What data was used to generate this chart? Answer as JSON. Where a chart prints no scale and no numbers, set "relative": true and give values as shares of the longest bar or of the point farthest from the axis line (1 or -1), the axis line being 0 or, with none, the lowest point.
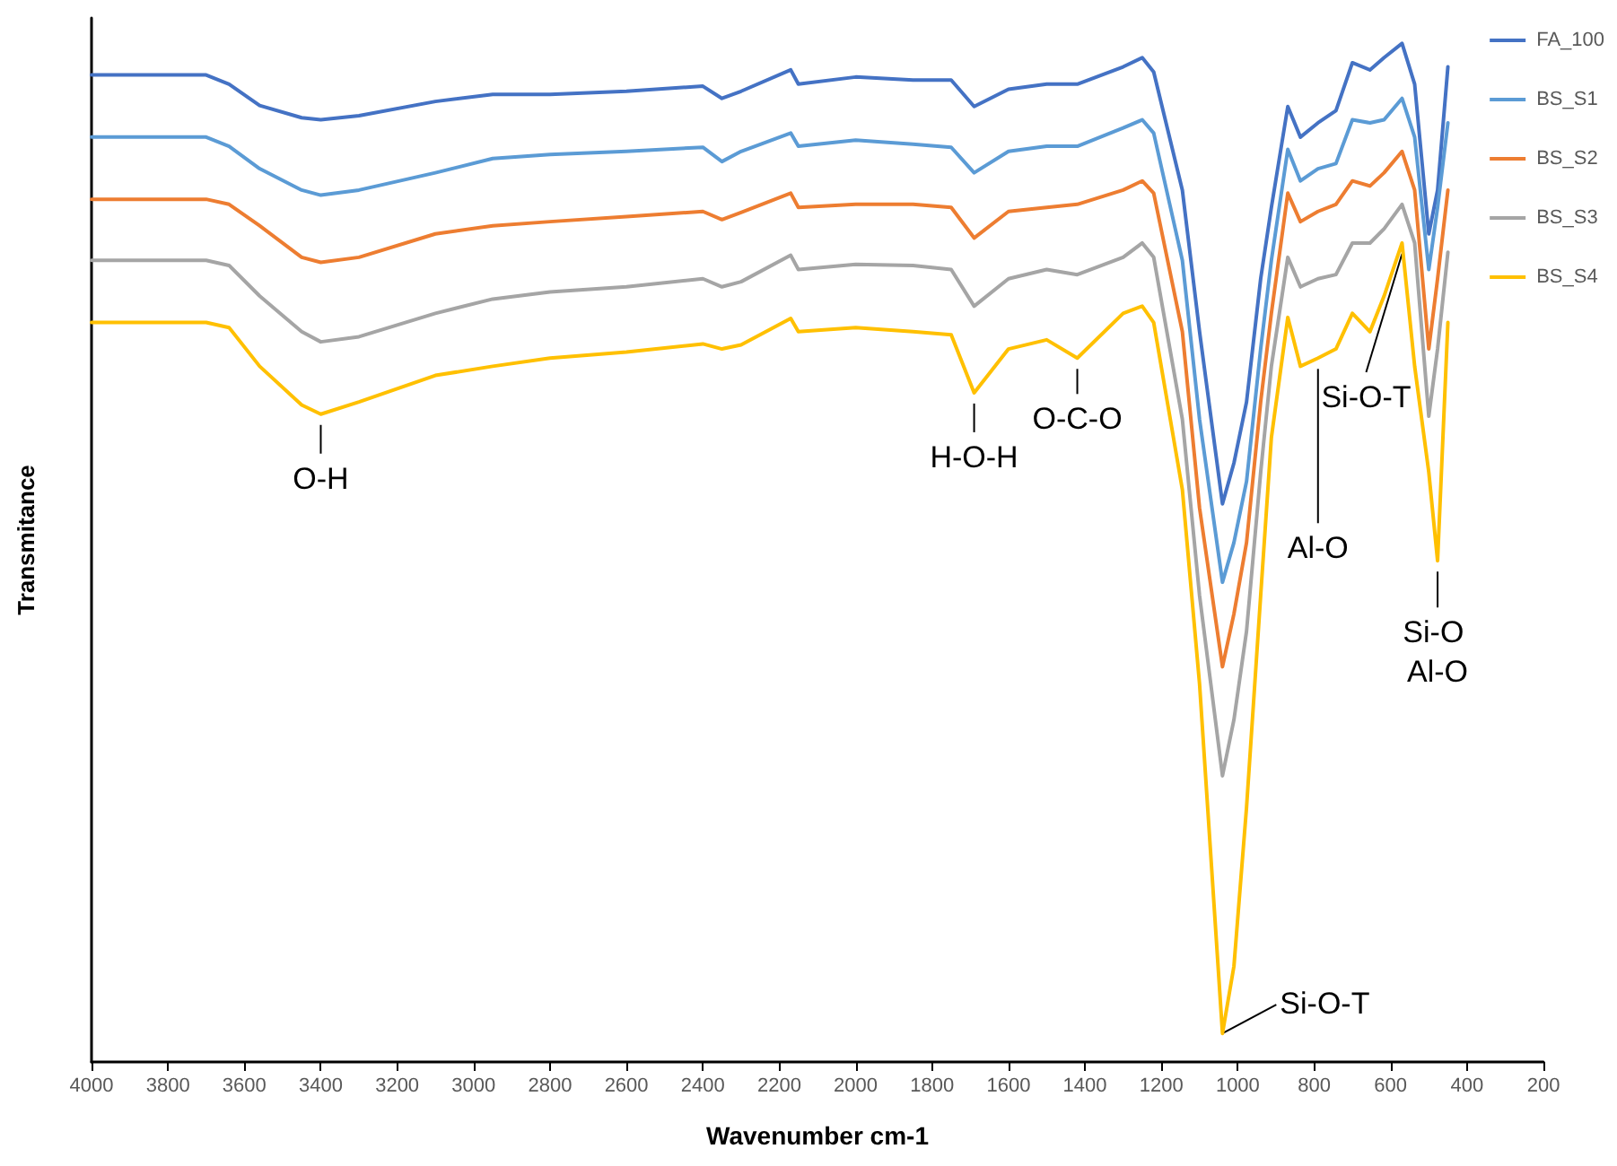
{
  "chart_data": {
    "type": "line",
    "relative": true,
    "xlabel": "Wavenumber cm-1",
    "ylabel": "Transmitance",
    "x": [
      4000,
      3700,
      3640,
      3560,
      3450,
      3400,
      3300,
      3100,
      2950,
      2800,
      2600,
      2400,
      2350,
      2300,
      2170,
      2150,
      2000,
      1850,
      1750,
      1690,
      1600,
      1500,
      1420,
      1300,
      1250,
      1220,
      1145,
      1100,
      1040,
      1010,
      977,
      940,
      912,
      869,
      836,
      790,
      743,
      700,
      654,
      617,
      570,
      537,
      500,
      477,
      450
    ],
    "xlim": [
      4000,
      200
    ],
    "xticks": [
      4000,
      3800,
      3600,
      3400,
      3200,
      3000,
      2800,
      2600,
      2400,
      2200,
      2000,
      1800,
      1600,
      1400,
      1200,
      1000,
      800,
      600,
      400,
      200
    ],
    "series": [
      {
        "name": "FA_100",
        "color": "#4472c4",
        "values": [
          0.969,
          0.969,
          0.96,
          0.939,
          0.927,
          0.925,
          0.929,
          0.943,
          0.95,
          0.95,
          0.953,
          0.958,
          0.946,
          0.953,
          0.974,
          0.96,
          0.967,
          0.964,
          0.964,
          0.938,
          0.955,
          0.96,
          0.96,
          0.977,
          0.986,
          0.972,
          0.856,
          0.717,
          0.548,
          0.588,
          0.648,
          0.769,
          0.839,
          0.938,
          0.908,
          0.922,
          0.934,
          0.981,
          0.974,
          0.986,
          1.0,
          0.96,
          0.813,
          0.856,
          0.977
        ]
      },
      {
        "name": "BS_S1",
        "color": "#5b9bd5",
        "values": [
          0.908,
          0.908,
          0.899,
          0.877,
          0.856,
          0.851,
          0.856,
          0.873,
          0.887,
          0.891,
          0.894,
          0.898,
          0.884,
          0.894,
          0.912,
          0.899,
          0.905,
          0.901,
          0.898,
          0.873,
          0.894,
          0.899,
          0.899,
          0.917,
          0.925,
          0.912,
          0.787,
          0.631,
          0.471,
          0.51,
          0.57,
          0.7,
          0.787,
          0.896,
          0.865,
          0.877,
          0.882,
          0.925,
          0.922,
          0.925,
          0.946,
          0.908,
          0.778,
          0.839,
          0.922
        ]
      },
      {
        "name": "BS_S2",
        "color": "#ed7d31",
        "values": [
          0.847,
          0.847,
          0.842,
          0.821,
          0.79,
          0.785,
          0.79,
          0.813,
          0.821,
          0.825,
          0.83,
          0.835,
          0.827,
          0.834,
          0.853,
          0.839,
          0.842,
          0.842,
          0.839,
          0.809,
          0.835,
          0.839,
          0.842,
          0.856,
          0.865,
          0.853,
          0.717,
          0.544,
          0.388,
          0.44,
          0.51,
          0.648,
          0.735,
          0.853,
          0.825,
          0.835,
          0.842,
          0.865,
          0.86,
          0.873,
          0.894,
          0.856,
          0.7,
          0.769,
          0.856
        ]
      },
      {
        "name": "BS_S3",
        "color": "#a5a5a5",
        "values": [
          0.787,
          0.787,
          0.782,
          0.752,
          0.717,
          0.707,
          0.712,
          0.735,
          0.749,
          0.756,
          0.761,
          0.769,
          0.761,
          0.766,
          0.792,
          0.778,
          0.783,
          0.782,
          0.778,
          0.742,
          0.769,
          0.778,
          0.773,
          0.79,
          0.804,
          0.79,
          0.631,
          0.458,
          0.281,
          0.336,
          0.423,
          0.579,
          0.683,
          0.79,
          0.761,
          0.769,
          0.773,
          0.804,
          0.804,
          0.818,
          0.842,
          0.804,
          0.634,
          0.7,
          0.795
        ]
      },
      {
        "name": "BS_S4",
        "color": "#ffc000",
        "values": [
          0.726,
          0.726,
          0.721,
          0.683,
          0.645,
          0.636,
          0.648,
          0.674,
          0.683,
          0.691,
          0.697,
          0.705,
          0.7,
          0.704,
          0.73,
          0.717,
          0.721,
          0.717,
          0.714,
          0.657,
          0.7,
          0.709,
          0.691,
          0.735,
          0.742,
          0.726,
          0.562,
          0.371,
          0.028,
          0.094,
          0.25,
          0.458,
          0.613,
          0.731,
          0.683,
          0.691,
          0.7,
          0.735,
          0.717,
          0.752,
          0.804,
          0.683,
          0.579,
          0.492,
          0.726
        ]
      }
    ],
    "annotations": [
      {
        "text": "O-H",
        "x": 3400,
        "y": 0.636
      },
      {
        "text": "H-O-H",
        "x": 1690,
        "y": 0.657
      },
      {
        "text": "O-C-O",
        "x": 1420,
        "y": 0.691
      },
      {
        "text": "Al-O",
        "x": 790,
        "y": 0.691
      },
      {
        "text": "Si-O-T",
        "x": 570,
        "y": 0.804
      },
      {
        "text": "Si-O Al-O",
        "x": 477,
        "y": 0.492
      },
      {
        "text": "Si-O-T",
        "x": 1040,
        "y": 0.028
      }
    ],
    "legend": "top right",
    "grid": false,
    "marker": "none",
    "line_style": "solid"
  }
}
